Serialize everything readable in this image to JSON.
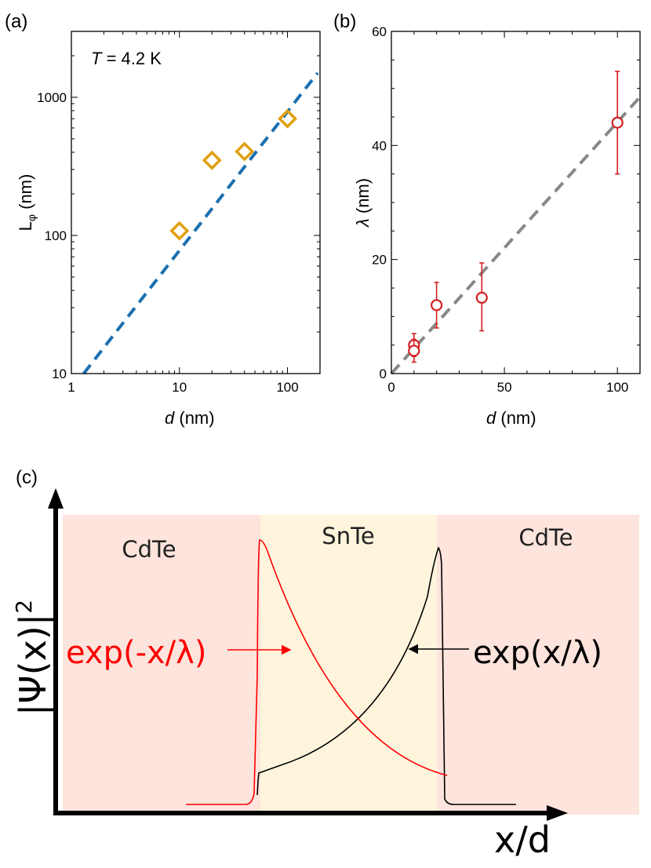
{
  "panels": {
    "a": "(a)",
    "b": "(b)",
    "c": "(c)"
  },
  "chart_data": [
    {
      "id": "a",
      "type": "scatter",
      "scale": "log-log",
      "annotation_T": "T",
      "annotation_rest": " = 4.2 K",
      "ylabel_main": "L",
      "ylabel_sub": "φ",
      "ylabel_unit": " (nm)",
      "xlabel_var": "d",
      "xlabel_unit": " (nm)",
      "xlim": [
        1,
        200
      ],
      "ylim": [
        10,
        3000
      ],
      "xticks": [
        {
          "v": 1,
          "label": "1"
        },
        {
          "v": 10,
          "label": "10"
        },
        {
          "v": 100,
          "label": "100"
        }
      ],
      "yticks": [
        {
          "v": 10,
          "label": "10"
        },
        {
          "v": 100,
          "label": "100"
        },
        {
          "v": 1000,
          "label": "1000"
        }
      ],
      "points": [
        {
          "x": 10,
          "y": 108
        },
        {
          "x": 20,
          "y": 350
        },
        {
          "x": 40,
          "y": 405
        },
        {
          "x": 100,
          "y": 700
        }
      ],
      "fit": {
        "x": [
          1.3,
          190
        ],
        "y": [
          10,
          1500
        ]
      },
      "marker_color": "#e0a010",
      "fit_color": "#1a6fb0"
    },
    {
      "id": "b",
      "type": "scatter",
      "ylabel_var": "λ",
      "ylabel_unit": " (nm)",
      "xlabel_var": "d",
      "xlabel_unit": " (nm)",
      "xlim": [
        0,
        110
      ],
      "ylim": [
        0,
        60
      ],
      "xticks": [
        {
          "v": 0,
          "label": "0"
        },
        {
          "v": 50,
          "label": "50"
        },
        {
          "v": 100,
          "label": "100"
        }
      ],
      "yticks": [
        {
          "v": 0,
          "label": "0"
        },
        {
          "v": 20,
          "label": "20"
        },
        {
          "v": 40,
          "label": "40"
        },
        {
          "v": 60,
          "label": "60"
        }
      ],
      "points": [
        {
          "x": 10,
          "y": 5,
          "err_lo": 3,
          "err_hi": 7
        },
        {
          "x": 10,
          "y": 4,
          "err_lo": 2,
          "err_hi": 6
        },
        {
          "x": 20,
          "y": 12,
          "err_lo": 8,
          "err_hi": 16
        },
        {
          "x": 40,
          "y": 13.3,
          "err_lo": 7.5,
          "err_hi": 19.4
        },
        {
          "x": 100,
          "y": 44,
          "err_lo": 35,
          "err_hi": 53
        }
      ],
      "fit": {
        "x": [
          0,
          110
        ],
        "y": [
          0,
          48.5
        ]
      },
      "marker_color": "#d42020",
      "fit_color": "#888888"
    }
  ],
  "schematic": {
    "region_left": "CdTe",
    "region_mid": "SnTe",
    "region_right": "CdTe",
    "ylabel": "|Ψ(x)|",
    "ylabel_sup": "2",
    "xlabel": "x/d",
    "eq_left": "exp(-x/λ)",
    "eq_right": "exp(x/λ)",
    "color_cdte": "#fde4dc",
    "color_snte": "#fef5dc"
  }
}
